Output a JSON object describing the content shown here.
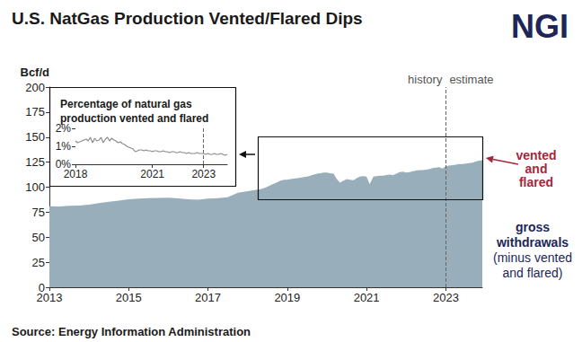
{
  "chart_data": [
    {
      "type": "area",
      "title": "U.S. NatGas Production Vented/Flared Dips",
      "logo": "NGI",
      "y_label": "Bcf/d",
      "source": "Source: Energy Information Administration",
      "stacked": true,
      "grid": false,
      "x": [
        2013,
        2013.25,
        2013.5,
        2013.75,
        2014,
        2014.25,
        2014.5,
        2014.75,
        2015,
        2015.25,
        2015.5,
        2015.75,
        2016,
        2016.25,
        2016.5,
        2016.75,
        2017,
        2017.25,
        2017.5,
        2017.75,
        2018,
        2018.08,
        2018.17,
        2018.25,
        2018.33,
        2018.42,
        2018.5,
        2018.58,
        2018.67,
        2018.75,
        2018.83,
        2018.92,
        2019,
        2019.08,
        2019.17,
        2019.25,
        2019.33,
        2019.42,
        2019.5,
        2019.58,
        2019.67,
        2019.75,
        2019.83,
        2019.92,
        2020,
        2020.08,
        2020.17,
        2020.25,
        2020.33,
        2020.42,
        2020.5,
        2020.58,
        2020.67,
        2020.75,
        2020.83,
        2020.92,
        2021,
        2021.08,
        2021.17,
        2021.25,
        2021.33,
        2021.42,
        2021.5,
        2021.58,
        2021.67,
        2021.75,
        2021.83,
        2021.92,
        2022,
        2022.08,
        2022.17,
        2022.25,
        2022.33,
        2022.42,
        2022.5,
        2022.58,
        2022.67,
        2022.75,
        2022.83,
        2022.92,
        2023,
        2023.08,
        2023.17,
        2023.25,
        2023.33,
        2023.42,
        2023.5,
        2023.58,
        2023.67,
        2023.75,
        2023.83,
        2023.92
      ],
      "series": [
        {
          "name": "gross\nwithdrawals\n(minus vented\nand flared)",
          "color": "#98aebb",
          "values": [
            81.0,
            80.8,
            81.3,
            81.6,
            82.5,
            84.0,
            85.5,
            86.5,
            88.0,
            88.5,
            89.0,
            89.2,
            89.5,
            88.8,
            88.0,
            87.5,
            88.5,
            89.0,
            90.0,
            94.5,
            96.0,
            96.5,
            97.0,
            97.5,
            98.0,
            99.0,
            100.5,
            102.0,
            103.5,
            105.0,
            106.5,
            107.5,
            107.5,
            108.0,
            108.5,
            109.0,
            109.5,
            110.0,
            110.5,
            111.5,
            112.5,
            113.5,
            114.0,
            114.5,
            114.5,
            114.0,
            113.5,
            108.0,
            104.5,
            106.5,
            108.0,
            107.5,
            107.0,
            109.0,
            110.5,
            111.0,
            110.5,
            103.0,
            110.5,
            111.0,
            111.5,
            111.5,
            112.0,
            112.5,
            112.0,
            113.5,
            115.0,
            115.5,
            114.5,
            115.0,
            116.0,
            116.5,
            117.0,
            117.0,
            117.5,
            118.0,
            119.0,
            119.5,
            120.0,
            118.5,
            121.0,
            121.5,
            122.0,
            122.5,
            123.0,
            123.0,
            123.5,
            124.0,
            124.5,
            125.5,
            126.5,
            127.0
          ]
        },
        {
          "name": "vented\nand\nflared",
          "color": "#a6263a",
          "values": [
            0.6,
            0.6,
            0.65,
            0.7,
            0.75,
            0.8,
            0.85,
            0.85,
            0.8,
            0.75,
            0.7,
            0.7,
            0.65,
            0.65,
            0.65,
            0.7,
            0.7,
            0.75,
            0.8,
            0.9,
            1.3,
            1.2,
            1.2,
            1.3,
            1.35,
            1.4,
            1.3,
            1.55,
            1.25,
            1.5,
            1.4,
            1.45,
            1.6,
            1.3,
            1.5,
            1.65,
            1.45,
            1.6,
            1.5,
            1.45,
            1.35,
            1.4,
            1.3,
            1.25,
            1.15,
            1.1,
            1.0,
            0.9,
            0.75,
            0.8,
            0.85,
            0.85,
            0.8,
            0.9,
            0.85,
            0.85,
            0.75,
            0.75,
            0.8,
            0.8,
            0.8,
            0.85,
            0.8,
            0.8,
            0.75,
            0.8,
            0.8,
            0.75,
            0.75,
            0.8,
            0.75,
            0.75,
            0.7,
            0.75,
            0.7,
            0.7,
            0.7,
            0.8,
            0.7,
            0.7,
            0.75,
            0.7,
            0.75,
            0.7,
            0.7,
            0.75,
            0.7,
            0.7,
            0.75,
            0.7,
            0.65,
            0.7
          ]
        }
      ],
      "xlim": [
        2013,
        2023.92
      ],
      "xticks": [
        2013,
        2015,
        2017,
        2019,
        2021,
        2023
      ],
      "ylim": [
        0,
        200
      ],
      "yticks": [
        0,
        25,
        50,
        75,
        100,
        125,
        150,
        175,
        200
      ],
      "divider": {
        "x": 2023,
        "labels": [
          "history",
          "estimate"
        ]
      }
    },
    {
      "type": "line",
      "title": "Percentage of natural gas\nproduction vented and flared",
      "grid": false,
      "x": [
        2018,
        2018.08,
        2018.17,
        2018.25,
        2018.33,
        2018.42,
        2018.5,
        2018.58,
        2018.67,
        2018.75,
        2018.83,
        2018.92,
        2019,
        2019.08,
        2019.17,
        2019.25,
        2019.33,
        2019.42,
        2019.5,
        2019.58,
        2019.67,
        2019.75,
        2019.83,
        2019.92,
        2020,
        2020.08,
        2020.17,
        2020.25,
        2020.33,
        2020.42,
        2020.5,
        2020.58,
        2020.67,
        2020.75,
        2020.83,
        2020.92,
        2021,
        2021.08,
        2021.17,
        2021.25,
        2021.33,
        2021.42,
        2021.5,
        2021.58,
        2021.67,
        2021.75,
        2021.83,
        2021.92,
        2022,
        2022.08,
        2022.17,
        2022.25,
        2022.33,
        2022.42,
        2022.5,
        2022.58,
        2022.67,
        2022.75,
        2022.83,
        2022.92,
        2023,
        2023.08,
        2023.17,
        2023.25,
        2023.33,
        2023.42,
        2023.5,
        2023.58,
        2023.67,
        2023.75,
        2023.83,
        2023.92
      ],
      "series": [
        {
          "color": "#8c8c8c",
          "values": [
            1.3,
            1.2,
            1.25,
            1.3,
            1.35,
            1.4,
            1.3,
            1.5,
            1.2,
            1.45,
            1.3,
            1.35,
            1.5,
            1.2,
            1.4,
            1.5,
            1.3,
            1.45,
            1.35,
            1.3,
            1.2,
            1.25,
            1.15,
            1.1,
            1.0,
            0.95,
            0.9,
            0.85,
            0.7,
            0.75,
            0.8,
            0.8,
            0.75,
            0.8,
            0.75,
            0.75,
            0.7,
            0.75,
            0.75,
            0.7,
            0.7,
            0.75,
            0.7,
            0.7,
            0.65,
            0.7,
            0.7,
            0.65,
            0.65,
            0.7,
            0.65,
            0.65,
            0.6,
            0.65,
            0.6,
            0.6,
            0.6,
            0.65,
            0.6,
            0.6,
            0.6,
            0.55,
            0.6,
            0.55,
            0.55,
            0.6,
            0.55,
            0.55,
            0.6,
            0.55,
            0.5,
            0.55
          ]
        }
      ],
      "xlim": [
        2018,
        2023.92
      ],
      "xticks": [
        2018,
        2021,
        2023
      ],
      "ylim": [
        0,
        2
      ],
      "yticks": [
        {
          "value": 0,
          "label": "0%"
        },
        {
          "value": 1,
          "label": "1%"
        },
        {
          "value": 2,
          "label": "2%"
        }
      ],
      "divider": {
        "x": 2023
      }
    }
  ]
}
